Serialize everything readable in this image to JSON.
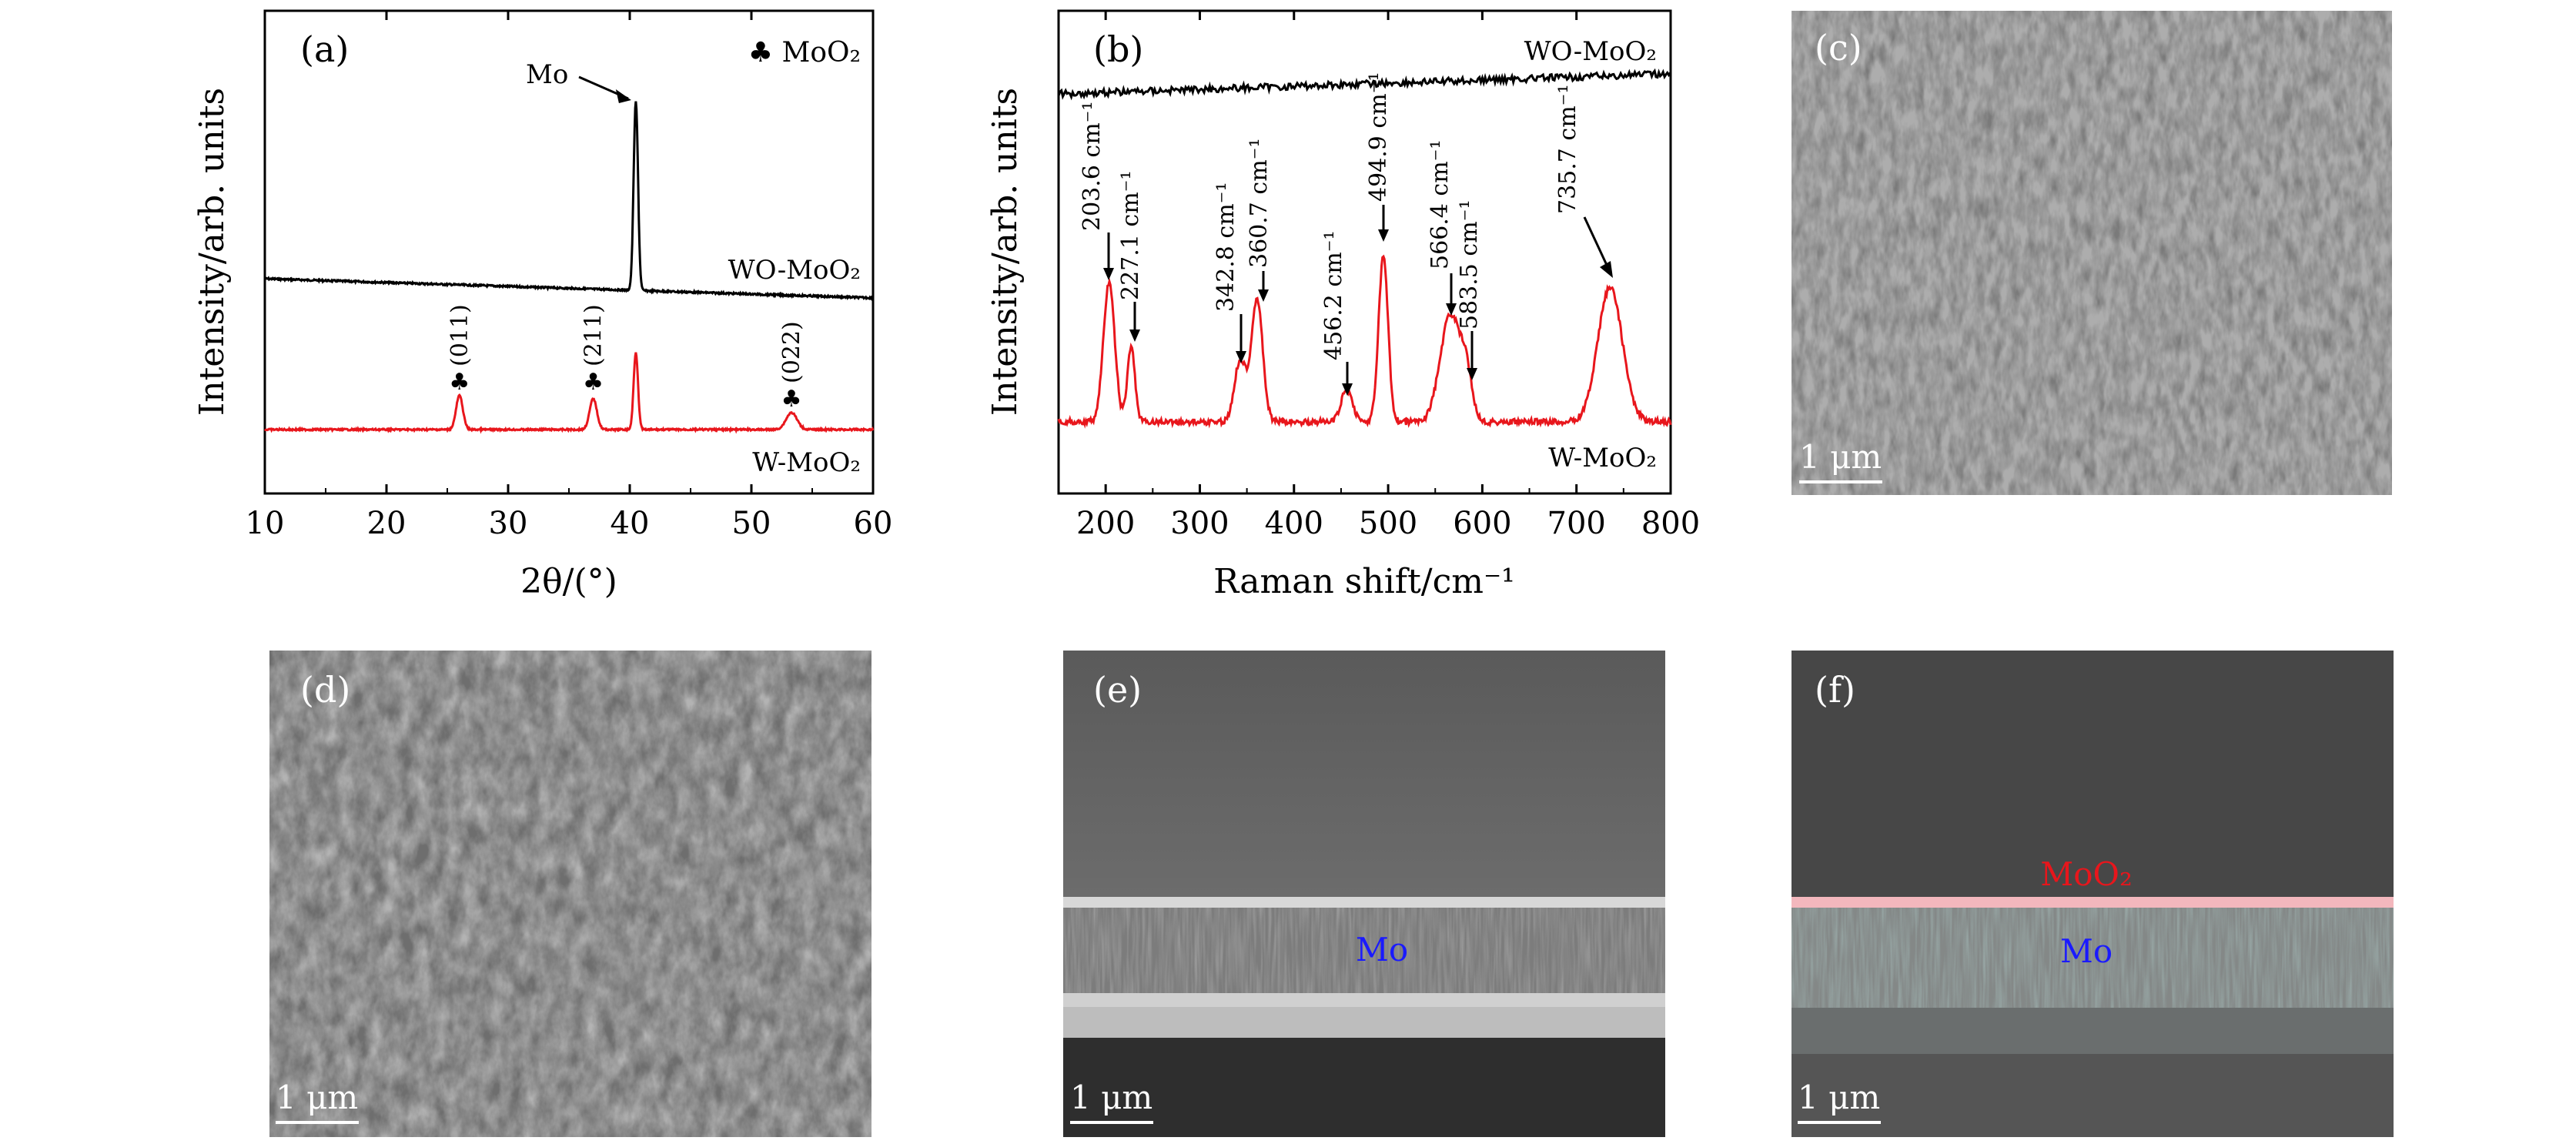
{
  "chart_data": [
    {
      "type": "line",
      "panel": "(a)",
      "xlabel": "2θ/(°)",
      "ylabel": "Intensity/arb. units",
      "xlim": [
        10,
        60
      ],
      "x_ticks": [
        "10",
        "20",
        "30",
        "40",
        "50",
        "60"
      ],
      "legend": "♣ MoO₂",
      "series": [
        {
          "name": "WO-MoO₂",
          "color": "#000000",
          "peaks": [
            {
              "x": 40.5,
              "label": "Mo"
            }
          ]
        },
        {
          "name": "W-MoO₂",
          "color": "#e8161c",
          "peaks": [
            {
              "x": 26.0,
              "label": "(011)"
            },
            {
              "x": 37.0,
              "label": "(211)"
            },
            {
              "x": 40.5,
              "label": ""
            },
            {
              "x": 53.3,
              "label": "(022)"
            }
          ]
        }
      ]
    },
    {
      "type": "line",
      "panel": "(b)",
      "xlabel": "Raman shift/cm⁻¹",
      "ylabel": "Intensity/arb. units",
      "xlim": [
        150,
        800
      ],
      "x_ticks": [
        "200",
        "300",
        "400",
        "500",
        "600",
        "700",
        "800"
      ],
      "series": [
        {
          "name": "WO-MoO₂",
          "color": "#000000"
        },
        {
          "name": "W-MoO₂",
          "color": "#e8161c",
          "peaks": [
            {
              "x": 203.6,
              "label": "203.6 cm⁻¹"
            },
            {
              "x": 227.1,
              "label": "227.1 cm⁻¹"
            },
            {
              "x": 342.8,
              "label": "342.8 cm⁻¹"
            },
            {
              "x": 360.7,
              "label": "360.7 cm⁻¹"
            },
            {
              "x": 456.2,
              "label": "456.2 cm⁻¹"
            },
            {
              "x": 494.9,
              "label": "494.9 cm⁻¹"
            },
            {
              "x": 566.4,
              "label": "566.4 cm⁻¹"
            },
            {
              "x": 583.5,
              "label": "583.5 cm⁻¹"
            },
            {
              "x": 735.7,
              "label": "735.7 cm⁻¹"
            }
          ]
        }
      ]
    }
  ],
  "images": {
    "c": {
      "label": "(c)",
      "scale": "1 μm"
    },
    "d": {
      "label": "(d)",
      "scale": "1 μm"
    },
    "e": {
      "label": "(e)",
      "scale": "1 μm",
      "layer": "Mo",
      "layer_color": "#1a1aff"
    },
    "f": {
      "label": "(f)",
      "scale": "1 μm",
      "layer_top": "MoO₂",
      "layer_top_color": "#e8161c",
      "layer": "Mo",
      "layer_color": "#1a1aff"
    }
  }
}
